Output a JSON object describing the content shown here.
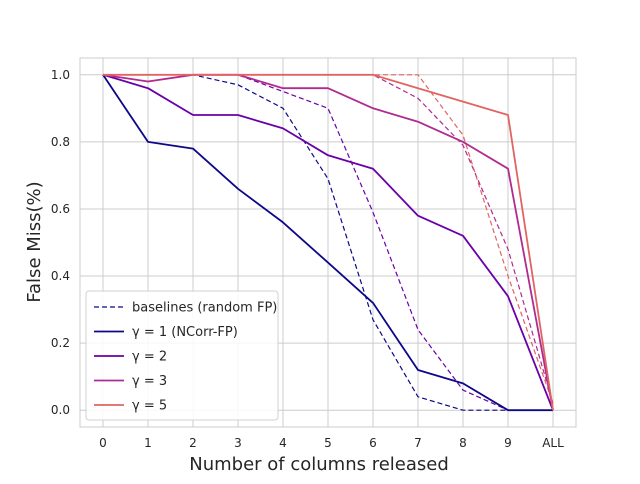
{
  "chart_data": {
    "type": "line",
    "xlabel": "Number of columns released",
    "ylabel": "False Miss(%)",
    "categories": [
      "0",
      "1",
      "2",
      "3",
      "4",
      "5",
      "6",
      "7",
      "8",
      "9",
      "ALL"
    ],
    "yticks": [
      "0.0",
      "0.2",
      "0.4",
      "0.6",
      "0.8",
      "1.0"
    ],
    "ylim": [
      -0.05,
      1.05
    ],
    "grid": true,
    "legend_position": "lower-left",
    "legend_dashed_label": "baselines (random FP)",
    "series": [
      {
        "name": "γ = 1 (NCorr-FP)",
        "style": "solid",
        "color": "#0d0887",
        "values": [
          1.0,
          0.8,
          0.78,
          0.66,
          0.56,
          0.44,
          0.32,
          0.12,
          0.08,
          0.0,
          0.0
        ]
      },
      {
        "name": "γ = 2",
        "style": "solid",
        "color": "#6a00a8",
        "values": [
          1.0,
          0.96,
          0.88,
          0.88,
          0.84,
          0.76,
          0.72,
          0.58,
          0.52,
          0.34,
          0.0
        ]
      },
      {
        "name": "γ = 3",
        "style": "solid",
        "color": "#b12a90",
        "values": [
          1.0,
          0.98,
          1.0,
          1.0,
          0.96,
          0.96,
          0.9,
          0.86,
          0.8,
          0.72,
          0.0
        ]
      },
      {
        "name": "γ = 5",
        "style": "solid",
        "color": "#e16462",
        "values": [
          1.0,
          1.0,
          1.0,
          1.0,
          1.0,
          1.0,
          1.0,
          0.96,
          0.92,
          0.88,
          0.0
        ]
      },
      {
        "name": "",
        "style": "dashed",
        "color": "#0d0887",
        "values": [
          1.0,
          1.0,
          1.0,
          0.97,
          0.9,
          0.69,
          0.27,
          0.04,
          0.0,
          0.0,
          0.0
        ]
      },
      {
        "name": "",
        "style": "dashed",
        "color": "#6a00a8",
        "values": [
          1.0,
          1.0,
          1.0,
          1.0,
          0.95,
          0.9,
          0.59,
          0.24,
          0.06,
          0.0,
          0.0
        ]
      },
      {
        "name": "",
        "style": "dashed",
        "color": "#b12a90",
        "values": [
          1.0,
          1.0,
          1.0,
          1.0,
          1.0,
          1.0,
          1.0,
          0.93,
          0.79,
          0.48,
          0.02
        ]
      },
      {
        "name": "",
        "style": "dashed",
        "color": "#e16462",
        "values": [
          1.0,
          1.0,
          1.0,
          1.0,
          1.0,
          1.0,
          1.0,
          1.0,
          0.82,
          0.4,
          0.02
        ]
      }
    ]
  }
}
